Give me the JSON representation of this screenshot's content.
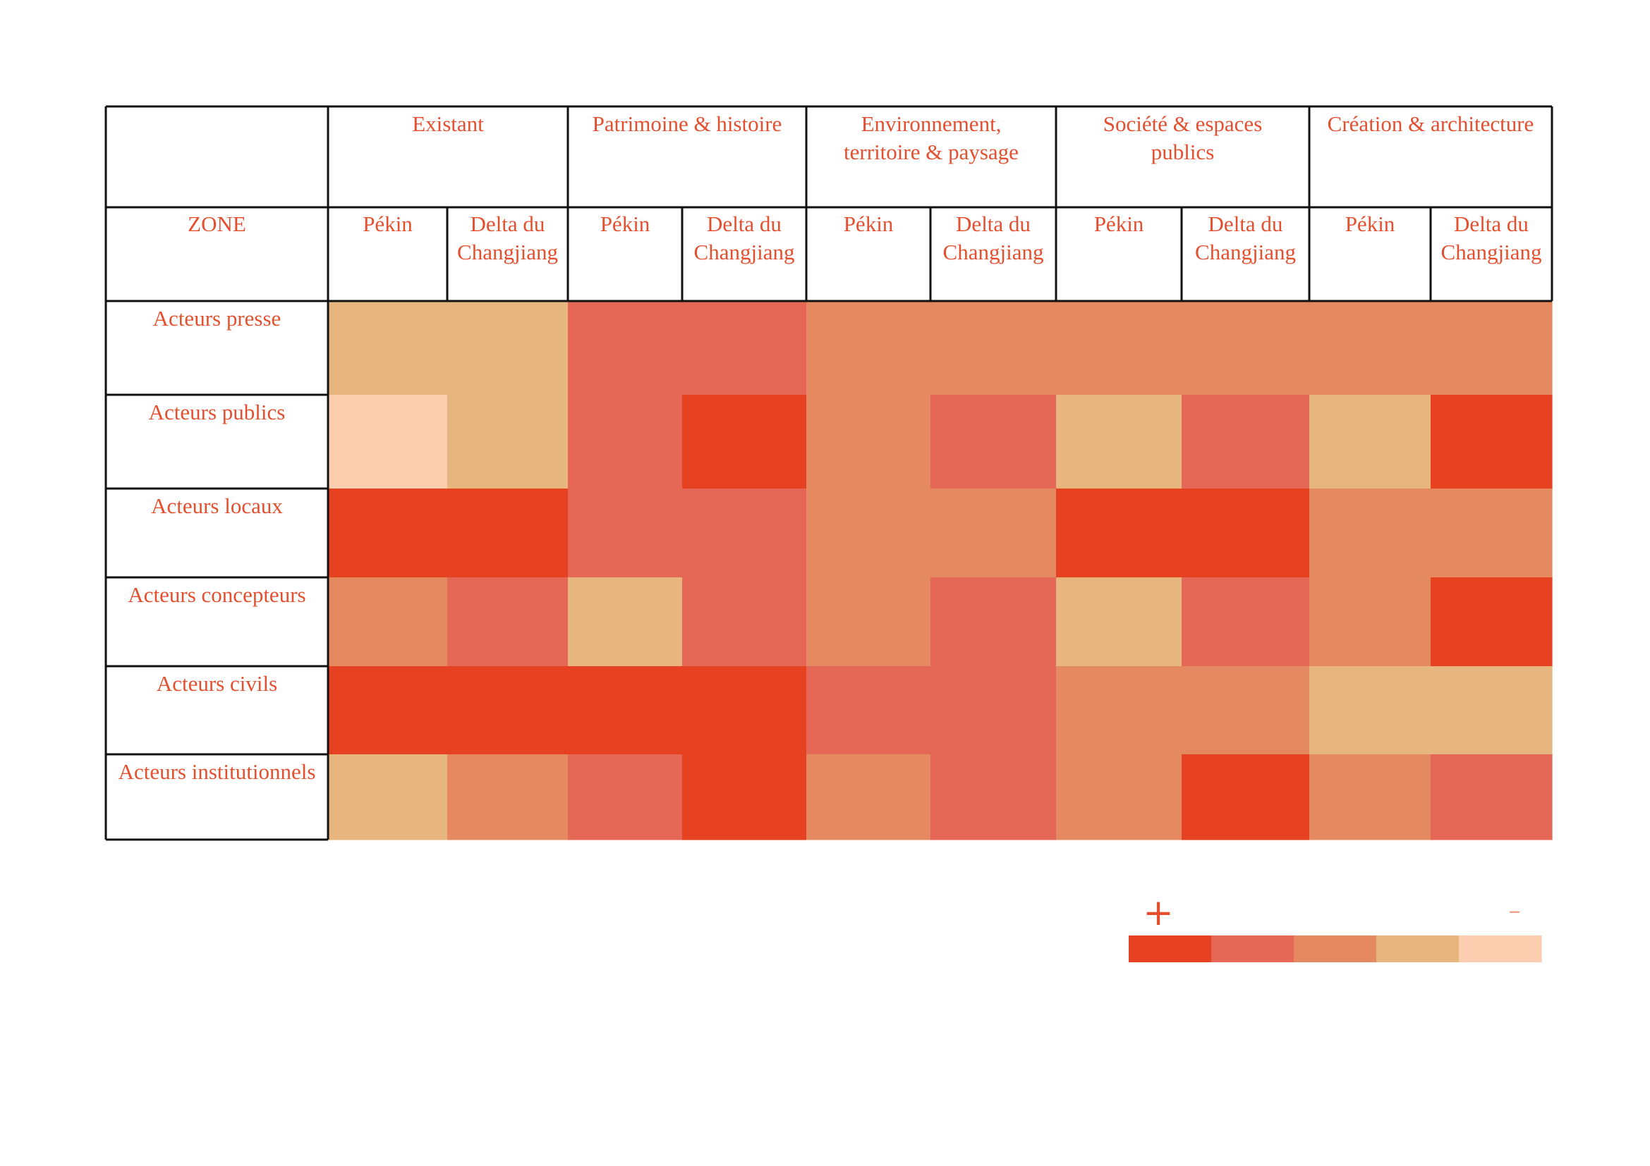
{
  "chart_data": {
    "type": "heatmap",
    "zone_label": "ZONE",
    "groups": [
      {
        "label": "Existant",
        "columns": [
          "Pékin",
          "Delta du Changjiang"
        ]
      },
      {
        "label": "Patrimoine & histoire",
        "columns": [
          "Pékin",
          "Delta du Changjiang"
        ]
      },
      {
        "label": "Environnement, territoire & paysage",
        "columns": [
          "Pékin",
          "Delta du Changjiang"
        ]
      },
      {
        "label": "Société & espaces publics",
        "columns": [
          "Pékin",
          "Delta du Changjiang"
        ]
      },
      {
        "label": "Création & architecture",
        "columns": [
          "Pékin",
          "Delta du Changjiang"
        ]
      }
    ],
    "rows": [
      "Acteurs presse",
      "Acteurs publics",
      "Acteurs locaux",
      "Acteurs concepteurs",
      "Acteurs civils",
      "Acteurs institutionnels"
    ],
    "levels_note": "1 = + (strongest), 5 = − (weakest)",
    "values": [
      [
        4,
        4,
        2,
        2,
        3,
        3,
        3,
        3,
        3,
        3
      ],
      [
        5,
        4,
        2,
        1,
        3,
        2,
        4,
        2,
        4,
        1
      ],
      [
        1,
        1,
        2,
        2,
        3,
        3,
        1,
        1,
        3,
        3
      ],
      [
        3,
        2,
        4,
        2,
        3,
        2,
        4,
        2,
        3,
        1
      ],
      [
        1,
        1,
        1,
        1,
        2,
        2,
        3,
        3,
        4,
        4
      ],
      [
        4,
        3,
        2,
        1,
        3,
        2,
        3,
        1,
        3,
        2
      ]
    ],
    "legend": {
      "plus": "+",
      "minus": "–",
      "colors": [
        "#e64120",
        "#e56856",
        "#e58a60",
        "#e7b67f",
        "#fdcdb0"
      ]
    }
  }
}
